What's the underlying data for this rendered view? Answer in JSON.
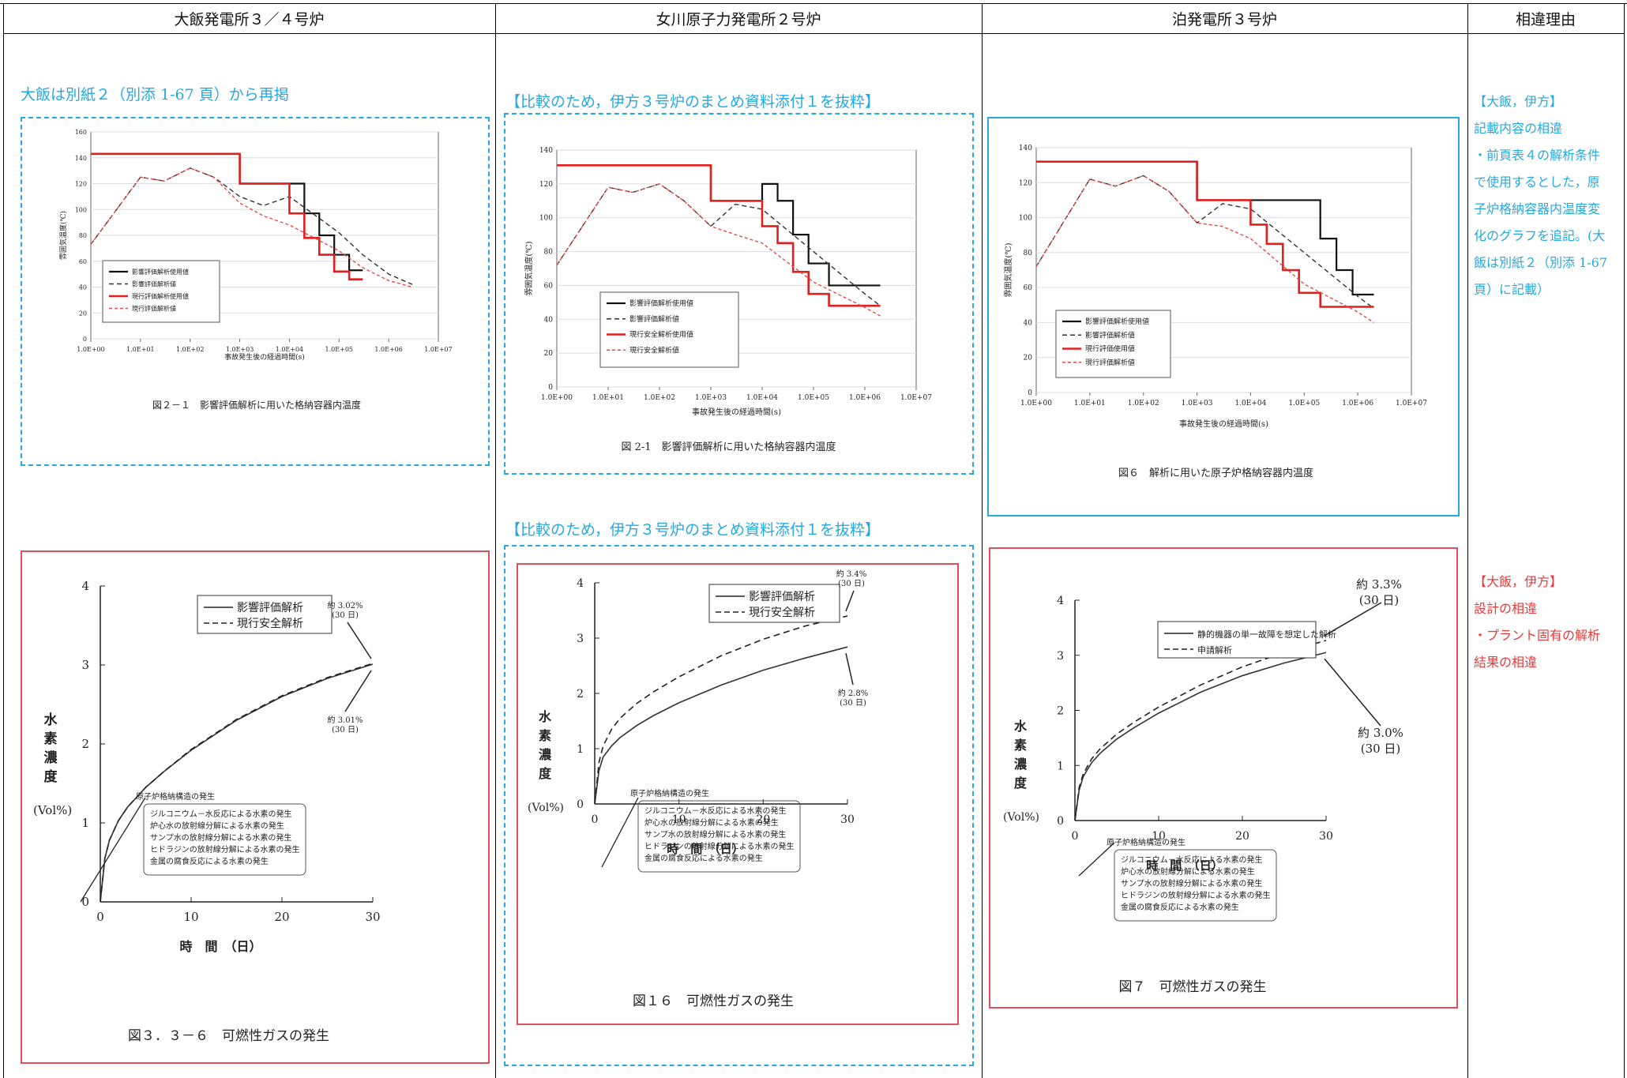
{
  "columns": [
    "大飯発電所３／４号炉",
    "女川原子力発電所２号炉",
    "泊発電所３号炉",
    "相違理由"
  ],
  "notes": {
    "ohi": "大飯は別紙２（別添 1-67 頁）から再掲",
    "onagawa_1": "【比較のため，伊方３号炉のまとめ資料添付１を抜粋】",
    "onagawa_2": "【比較のため，伊方３号炉のまとめ資料添付１を抜粋】"
  },
  "reasons": {
    "group1": [
      "【大飯，伊方】",
      "記載内容の相違",
      "・前頁表４の解析条件",
      "で使用するとした，原",
      "子炉格納容器内温度変",
      "化のグラフを追記。(大",
      "飯は別紙２（別添 1-67",
      "頁）に記載）"
    ],
    "group2": [
      "【大飯，伊方】",
      "設計の相違",
      "・プラント固有の解析",
      "結果の相違"
    ]
  },
  "temp_charts": [
    {
      "caption": "図２－１　影響評価解析に用いた格納容器内温度",
      "ylabel": "雰囲気温度(℃)",
      "xlabel": "事故発生後の経過時間(s)",
      "yticks": [
        "0",
        "20",
        "40",
        "60",
        "80",
        "100",
        "120",
        "140",
        "160"
      ],
      "xticks": [
        "1.0E+00",
        "1.0E+01",
        "1.0E+02",
        "1.0E+03",
        "1.0E+04",
        "1.0E+05",
        "1.0E+06",
        "1.0E+07"
      ],
      "legend": [
        "影響評価解析使用値",
        "影響評価解析値",
        "現行評価解析使用値",
        "現行評価解析値"
      ]
    },
    {
      "caption": "図 2-1　影響評価解析に用いた格納容器内温度",
      "ylabel": "雰囲気温度(℃)",
      "xlabel": "事故発生後の経過時間(s)",
      "yticks": [
        "0",
        "20",
        "40",
        "60",
        "80",
        "100",
        "120",
        "140"
      ],
      "xticks": [
        "1.0E+00",
        "1.0E+01",
        "1.0E+02",
        "1.0E+03",
        "1.0E+04",
        "1.0E+05",
        "1.0E+06",
        "1.0E+07"
      ],
      "legend": [
        "影響評価解析使用値",
        "影響評価解析値",
        "現行安全解析使用値",
        "現行安全解析値"
      ]
    },
    {
      "caption": "図６　解析に用いた原子炉格納容器内温度",
      "ylabel": "雰囲気温度(℃)",
      "xlabel": "事故発生後の経過時間(s)",
      "yticks": [
        "0",
        "20",
        "40",
        "60",
        "80",
        "100",
        "120",
        "140"
      ],
      "xticks": [
        "1.0E+00",
        "1.0E+01",
        "1.0E+02",
        "1.0E+03",
        "1.0E+04",
        "1.0E+05",
        "1.0E+06",
        "1.0E+07"
      ],
      "legend": [
        "影響評価解析使用値",
        "影響評価解析値",
        "現行評価使用値",
        "現行評価解析値"
      ]
    }
  ],
  "h2_charts": [
    {
      "caption": "図３．３－６　可燃性ガスの発生",
      "ylabel": "水素濃度",
      "yunit": "(Vol%)",
      "xlabel": "時　間　（日）",
      "yticks": [
        "0",
        "1",
        "2",
        "3",
        "4"
      ],
      "xticks": [
        "0",
        "10",
        "20",
        "30"
      ],
      "legend": [
        "影響評価解析",
        "現行安全解析"
      ],
      "ann_upper": [
        "約 3.02%",
        "(30 日)"
      ],
      "ann_lower": [
        "約 3.01%",
        "(30 日)"
      ],
      "sources": [
        "原子炉格納構造の発生",
        "ジルコニウム－水反応による水素の発生",
        "炉心水の放射線分解による水素の発生",
        "サンプ水の放射線分解による水素の発生",
        "ヒドラジンの放射線分解による水素の発生",
        "金属の腐食反応による水素の発生"
      ]
    },
    {
      "caption": "図１６　可燃性ガスの発生",
      "ylabel": "水素濃度",
      "yunit": "(Vol%)",
      "xlabel": "時　間　（日）",
      "yticks": [
        "0",
        "1",
        "2",
        "3",
        "4"
      ],
      "xticks": [
        "0",
        "10",
        "20",
        "30"
      ],
      "legend": [
        "影響評価解析",
        "現行安全解析"
      ],
      "ann_upper": [
        "約 3.4%",
        "(30 日)"
      ],
      "ann_lower": [
        "約 2.8%",
        "(30 日)"
      ],
      "sources": [
        "原子炉格納構造の発生",
        "ジルコニウム－水反応による水素の発生",
        "炉心水の放射線分解による水素の発生",
        "サンプ水の放射線分解による水素の発生",
        "ヒドラジンの放射線分解による水素の発生",
        "金属の腐食反応による水素の発生"
      ]
    },
    {
      "caption": "図７　可燃性ガスの発生",
      "ylabel": "水素濃度",
      "yunit": "(Vol%)",
      "xlabel": "時　間　（日）",
      "yticks": [
        "0",
        "1",
        "2",
        "3",
        "4"
      ],
      "xticks": [
        "0",
        "10",
        "20",
        "30"
      ],
      "legend": [
        "静的機器の単一故障を想定した解析",
        "申請解析"
      ],
      "ann_upper": [
        "約 3.3%",
        "(30 日)"
      ],
      "ann_lower": [
        "約 3.0%",
        "(30 日)"
      ],
      "sources": [
        "原子炉格納構造の発生",
        "ジルコニウム－水反応による水素の発生",
        "炉心水の放射線分解による水素の発生",
        "サンプ水の放射線分解による水素の発生",
        "ヒドラジンの放射線分解による水素の発生",
        "金属の腐食反応による水素の発生"
      ]
    }
  ],
  "chart_data": [
    {
      "type": "line",
      "title": "",
      "xlabel": "事故発生後の経過時間(s)",
      "ylabel": "雰囲気温度(℃)",
      "xscale": "log",
      "xlim": [
        1,
        10000000
      ],
      "ylim": [
        0,
        160
      ],
      "series": [
        {
          "name": "影響評価解析使用値",
          "style": "step",
          "x": [
            1,
            1000,
            10000,
            20000,
            40000,
            80000,
            160000,
            300000
          ],
          "values": [
            143,
            120,
            120,
            97,
            80,
            65,
            53,
            53
          ]
        },
        {
          "name": "影響評価解析値",
          "x": [
            1,
            10,
            30,
            100,
            300,
            1000,
            3000,
            10000,
            100000,
            300000,
            1000000,
            3000000
          ],
          "values": [
            73,
            125,
            122,
            132,
            125,
            110,
            103,
            110,
            82,
            65,
            50,
            42
          ]
        },
        {
          "name": "現行評価解析使用値",
          "style": "step",
          "x": [
            1,
            1000,
            10000,
            20000,
            40000,
            80000,
            160000,
            300000
          ],
          "values": [
            143,
            120,
            97,
            78,
            65,
            52,
            46,
            46
          ]
        },
        {
          "name": "現行評価解析値",
          "x": [
            1,
            10,
            30,
            100,
            300,
            1000,
            3000,
            10000,
            100000,
            300000,
            1000000,
            3000000
          ],
          "values": [
            73,
            125,
            122,
            132,
            125,
            105,
            95,
            88,
            68,
            55,
            45,
            40
          ]
        }
      ]
    },
    {
      "type": "line",
      "title": "",
      "xlabel": "事故発生後の経過時間(s)",
      "ylabel": "雰囲気温度(℃)",
      "xscale": "log",
      "xlim": [
        1,
        10000000
      ],
      "ylim": [
        0,
        140
      ],
      "series": [
        {
          "name": "影響評価解析使用値",
          "style": "step",
          "x": [
            1,
            1000,
            10000,
            20000,
            40000,
            80000,
            200000,
            600000,
            2000000
          ],
          "values": [
            131,
            110,
            120,
            110,
            90,
            73,
            60,
            60,
            60
          ]
        },
        {
          "name": "影響評価解析値",
          "x": [
            1,
            10,
            30,
            100,
            300,
            1000,
            3000,
            10000,
            100000,
            1000000,
            2000000
          ],
          "values": [
            72,
            118,
            115,
            120,
            110,
            95,
            108,
            105,
            80,
            55,
            48
          ]
        },
        {
          "name": "現行安全解析使用値",
          "style": "step",
          "x": [
            1,
            1000,
            10000,
            20000,
            40000,
            80000,
            200000,
            600000,
            2000000
          ],
          "values": [
            131,
            110,
            95,
            85,
            68,
            55,
            48,
            48,
            48
          ]
        },
        {
          "name": "現行安全解析値",
          "x": [
            1,
            10,
            30,
            100,
            300,
            1000,
            3000,
            10000,
            100000,
            1000000,
            2000000
          ],
          "values": [
            72,
            118,
            115,
            120,
            110,
            95,
            90,
            85,
            62,
            47,
            42
          ]
        }
      ]
    },
    {
      "type": "line",
      "title": "",
      "xlabel": "事故発生後の経過時間(s)",
      "ylabel": "雰囲気温度(℃)",
      "xscale": "log",
      "xlim": [
        1,
        10000000
      ],
      "ylim": [
        0,
        140
      ],
      "series": [
        {
          "name": "影響評価解析使用値",
          "style": "step",
          "x": [
            1,
            1000,
            10000,
            100000,
            200000,
            400000,
            800000,
            2000000
          ],
          "values": [
            132,
            110,
            110,
            110,
            88,
            70,
            56,
            56
          ]
        },
        {
          "name": "影響評価解析値",
          "x": [
            1,
            10,
            30,
            100,
            300,
            1000,
            3000,
            10000,
            100000,
            1000000,
            2000000
          ],
          "values": [
            72,
            122,
            118,
            124,
            115,
            97,
            108,
            105,
            80,
            55,
            48
          ]
        },
        {
          "name": "現行評価使用値",
          "style": "step",
          "x": [
            1,
            1000,
            10000,
            20000,
            40000,
            80000,
            200000,
            600000,
            2000000
          ],
          "values": [
            132,
            110,
            96,
            85,
            70,
            57,
            49,
            49,
            49
          ]
        },
        {
          "name": "現行評価解析値",
          "x": [
            1,
            10,
            30,
            100,
            300,
            1000,
            3000,
            10000,
            100000,
            1000000,
            2000000
          ],
          "values": [
            72,
            122,
            118,
            124,
            115,
            97,
            95,
            88,
            62,
            46,
            40
          ]
        }
      ]
    },
    {
      "type": "line",
      "title": "",
      "xlabel": "時　間　（日）",
      "ylabel": "水素濃度",
      "xlim": [
        0,
        30
      ],
      "ylim": [
        0,
        4
      ],
      "series": [
        {
          "name": "影響評価解析",
          "x": [
            0,
            0.5,
            1,
            2,
            3,
            5,
            7,
            10,
            15,
            20,
            25,
            30
          ],
          "values": [
            0,
            0.55,
            0.78,
            1.03,
            1.2,
            1.45,
            1.65,
            1.92,
            2.3,
            2.6,
            2.83,
            3.01
          ]
        },
        {
          "name": "現行安全解析",
          "x": [
            0,
            0.5,
            1,
            2,
            3,
            5,
            7,
            10,
            15,
            20,
            25,
            30
          ],
          "values": [
            0,
            0.55,
            0.78,
            1.03,
            1.2,
            1.45,
            1.65,
            1.93,
            2.31,
            2.61,
            2.84,
            3.02
          ]
        }
      ]
    },
    {
      "type": "line",
      "title": "",
      "xlabel": "時　間　（日）",
      "ylabel": "水素濃度",
      "xlim": [
        0,
        30
      ],
      "ylim": [
        0,
        4
      ],
      "series": [
        {
          "name": "影響評価解析",
          "x": [
            0,
            0.5,
            1,
            2,
            3,
            5,
            7,
            10,
            15,
            20,
            25,
            30
          ],
          "values": [
            0,
            0.6,
            0.85,
            1.05,
            1.2,
            1.42,
            1.6,
            1.83,
            2.15,
            2.42,
            2.64,
            2.84
          ]
        },
        {
          "name": "現行安全解析",
          "x": [
            0,
            0.5,
            1,
            2,
            3,
            5,
            7,
            10,
            15,
            20,
            25,
            30
          ],
          "values": [
            0,
            0.75,
            1.05,
            1.35,
            1.55,
            1.82,
            2.03,
            2.3,
            2.68,
            2.98,
            3.22,
            3.4
          ]
        }
      ]
    },
    {
      "type": "line",
      "title": "",
      "xlabel": "時　間　（日）",
      "ylabel": "水素濃度",
      "xlim": [
        0,
        30
      ],
      "ylim": [
        0,
        4
      ],
      "series": [
        {
          "name": "静的機器の単一故障を想定した解析",
          "x": [
            0,
            0.5,
            1,
            2,
            3,
            5,
            7,
            10,
            15,
            20,
            25,
            30
          ],
          "values": [
            0,
            0.55,
            0.8,
            1.05,
            1.22,
            1.48,
            1.68,
            1.95,
            2.33,
            2.63,
            2.86,
            3.05
          ]
        },
        {
          "name": "申請解析",
          "x": [
            0,
            0.5,
            1,
            2,
            3,
            5,
            7,
            10,
            15,
            20,
            25,
            30
          ],
          "values": [
            0,
            0.6,
            0.85,
            1.12,
            1.3,
            1.57,
            1.78,
            2.06,
            2.46,
            2.79,
            3.05,
            3.27
          ]
        }
      ]
    }
  ]
}
